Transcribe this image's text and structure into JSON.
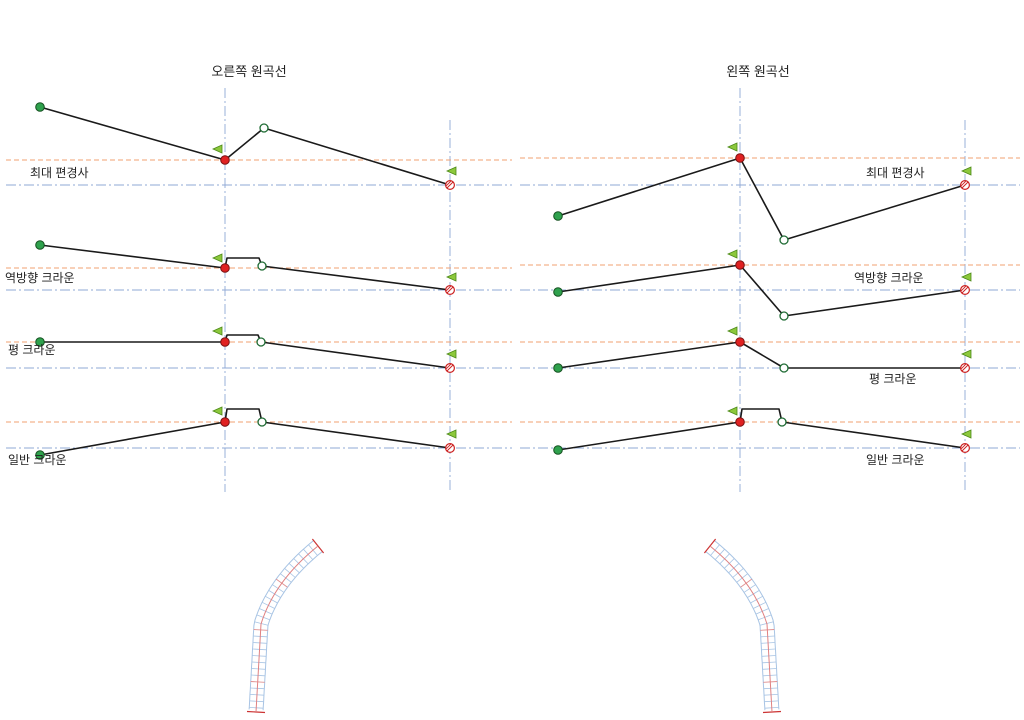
{
  "diagram": {
    "groups": [
      {
        "id": "right-curve",
        "title": "오른쪽 원곡선"
      },
      {
        "id": "left-curve",
        "title": "왼쪽 원곡선"
      }
    ],
    "row_labels": {
      "max_superelevation": "최대 편경사",
      "reverse_crown": "역방향 크라운",
      "flat_crown": "평 크라운",
      "normal_crown": "일반 크라운"
    },
    "colors": {
      "profile_line": "#1a1a1a",
      "max_slope_guide": "#f0a070",
      "crown_guide": "#8fa9d6",
      "start_marker": "#2fa14d",
      "critical_marker": "#e02121",
      "open_marker_stroke": "#1e6b33",
      "end_marker": "#cc2222",
      "flag_marker": "#8cc83c",
      "plan_edge": "#a8c4e4",
      "plan_center": "#e08080"
    }
  }
}
